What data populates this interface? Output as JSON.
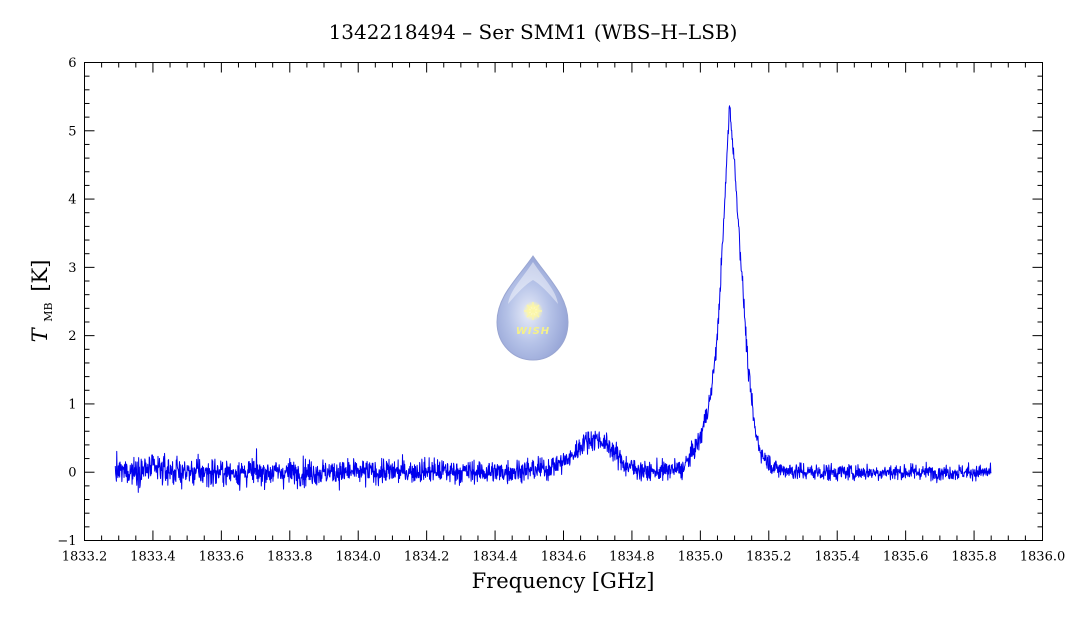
{
  "chart_data": {
    "type": "line",
    "title": "1342218494 – Ser SMM1 (WBS–H–LSB)",
    "xlabel": "Frequency [GHz]",
    "ylabel_main": "T",
    "ylabel_sub": "MB",
    "ylabel_unit": "[K]",
    "xlim": [
      1833.2,
      1836.0
    ],
    "ylim": [
      -1,
      6
    ],
    "xticks": [
      1833.2,
      1833.4,
      1833.6,
      1833.8,
      1834.0,
      1834.2,
      1834.4,
      1834.6,
      1834.8,
      1835.0,
      1835.2,
      1835.4,
      1835.6,
      1835.8,
      1836.0
    ],
    "xtick_labels": [
      "1833.2",
      "1833.4",
      "1833.6",
      "1833.8",
      "1834.0",
      "1834.2",
      "1834.4",
      "1834.6",
      "1834.8",
      "1835.0",
      "1835.2",
      "1835.4",
      "1835.6",
      "1835.8",
      "1836.0"
    ],
    "yticks": [
      -1,
      0,
      1,
      2,
      3,
      4,
      5,
      6
    ],
    "ytick_labels": [
      "−1",
      "0",
      "1",
      "2",
      "3",
      "4",
      "5",
      "6"
    ],
    "series": [
      {
        "color": "#0000ee",
        "x_range": [
          1833.29,
          1835.85
        ],
        "x": [
          1833.29,
          1833.4,
          1833.5,
          1833.6,
          1833.8,
          1834.0,
          1834.2,
          1834.4,
          1834.55,
          1834.62,
          1834.66,
          1834.7,
          1834.74,
          1834.78,
          1834.85,
          1834.95,
          1835.0,
          1835.03,
          1835.05,
          1835.07,
          1835.085,
          1835.1,
          1835.12,
          1835.14,
          1835.16,
          1835.18,
          1835.22,
          1835.3,
          1835.5,
          1835.7,
          1835.85
        ],
        "y": [
          0.0,
          0.05,
          0.0,
          0.0,
          0.0,
          0.0,
          0.02,
          0.0,
          0.05,
          0.2,
          0.45,
          0.5,
          0.35,
          0.1,
          0.0,
          0.05,
          0.5,
          1.1,
          2.0,
          3.8,
          5.4,
          4.5,
          3.0,
          1.5,
          0.6,
          0.25,
          0.05,
          0.0,
          0.0,
          0.0,
          0.0
        ],
        "noise_rms_low_freq": 0.2,
        "noise_rms_high_freq": 0.1
      }
    ]
  },
  "logo": {
    "text": "WISH",
    "icon": "water-drop-logo"
  }
}
